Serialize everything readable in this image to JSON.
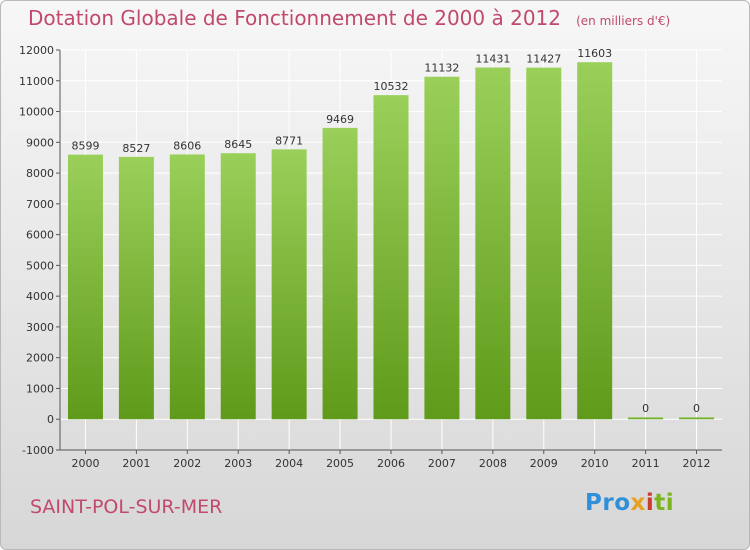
{
  "header": {
    "title": "Dotation Globale de Fonctionnement de 2000 à 2012",
    "subtitle": "(en milliers d'€)"
  },
  "footer": {
    "city": "SAINT-POL-SUR-MER",
    "logo": [
      "Pro",
      "x",
      "i",
      "ti"
    ]
  },
  "colors": {
    "bar_top": "#9ad05a",
    "bar_bottom": "#5f9a1a",
    "title": "#c14a6c"
  },
  "chart_data": {
    "type": "bar",
    "title": "Dotation Globale de Fonctionnement de 2000 à 2012",
    "subtitle": "(en milliers d'€)",
    "categories": [
      "2000",
      "2001",
      "2002",
      "2003",
      "2004",
      "2005",
      "2006",
      "2007",
      "2008",
      "2009",
      "2010",
      "2011",
      "2012"
    ],
    "values": [
      8599,
      8527,
      8606,
      8645,
      8771,
      9469,
      10532,
      11132,
      11431,
      11427,
      11603,
      0,
      0
    ],
    "ylim": [
      -1000,
      12000
    ],
    "yticks": [
      -1000,
      0,
      1000,
      2000,
      3000,
      4000,
      5000,
      6000,
      7000,
      8000,
      9000,
      10000,
      11000,
      12000
    ],
    "grid": true,
    "xlabel": "",
    "ylabel": ""
  }
}
